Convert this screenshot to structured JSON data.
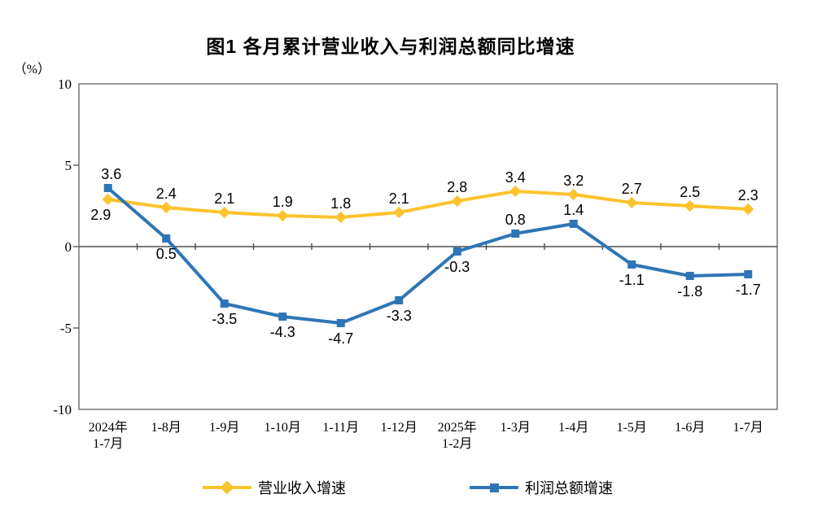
{
  "page": {
    "background": "#ffffff"
  },
  "chart": {
    "title": "图1 各月累计营业收入与利润总额同比增速",
    "unit_label": "（%）"
  },
  "chart_data": {
    "type": "line",
    "title": "图1 各月累计营业收入与利润总额同比增速",
    "ylabel": "（%）",
    "xlabel": "",
    "ylim": [
      -10,
      10
    ],
    "y_ticks": [
      10,
      5,
      0,
      -5,
      -10
    ],
    "grid": false,
    "legend_position": "bottom",
    "axis_color": "#7f7f7f",
    "zero_line_color": "#4d4d4d",
    "tick_color": "#595959",
    "label_color": "#000000",
    "categories": [
      "2024年\n1-7月",
      "1-8月",
      "1-9月",
      "1-10月",
      "1-11月",
      "1-12月",
      "2025年\n1-2月",
      "1-3月",
      "1-4月",
      "1-5月",
      "1-6月",
      "1-7月"
    ],
    "series": [
      {
        "name": "营业收入增速",
        "key": "revenue",
        "color": "#FDC32D",
        "marker": "diamond",
        "values": [
          2.9,
          2.4,
          2.1,
          1.9,
          1.8,
          2.1,
          2.8,
          3.4,
          3.2,
          2.7,
          2.5,
          2.3
        ],
        "label_positions": [
          "below",
          "above",
          "above",
          "above",
          "above",
          "above",
          "above",
          "above",
          "above",
          "above",
          "above",
          "above"
        ]
      },
      {
        "name": "利润总额增速",
        "key": "profit",
        "color": "#2E75B6",
        "marker": "square",
        "values": [
          3.6,
          0.5,
          -3.5,
          -4.3,
          -4.7,
          -3.3,
          -0.3,
          0.8,
          1.4,
          -1.1,
          -1.8,
          -1.7
        ],
        "label_positions": [
          "above",
          "below",
          "below",
          "below",
          "below",
          "below",
          "below",
          "above",
          "above",
          "below",
          "below",
          "below"
        ]
      }
    ]
  }
}
